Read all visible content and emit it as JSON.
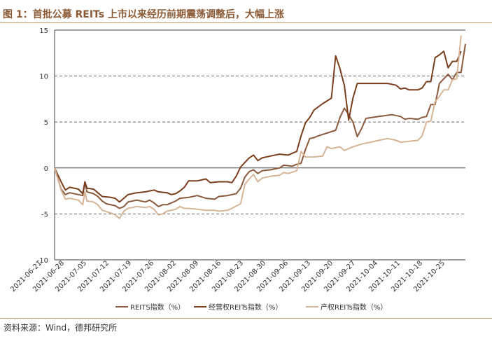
{
  "header": {
    "title": "图 1：首批公募 REITs 上市以来经历前期震荡调整后，大幅上涨"
  },
  "footer": {
    "source": "资料来源：Wind，德邦研究所"
  },
  "colors": {
    "title": "#8B5A34",
    "rule": "#C9A27A",
    "grid": "#555555"
  },
  "chart_data": {
    "type": "line",
    "ylim": [
      -10,
      15
    ],
    "yticks": [
      -10,
      -5,
      0,
      5,
      10,
      15
    ],
    "grid": "dashed horizontal at 5, 10",
    "legend_position": "bottom",
    "x_tick_labels": [
      "2021-06-21",
      "2021-06-28",
      "2021-07-05",
      "2021-07-12",
      "2021-07-19",
      "2021-07-26",
      "2021-08-02",
      "2021-08-09",
      "2021-08-16",
      "2021-08-23",
      "2021-08-30",
      "2021-09-06",
      "2021-09-13",
      "2021-09-20",
      "2021-09-27",
      "2021-10-04",
      "2021-10-11",
      "2021-10-18",
      "2021-10-25"
    ],
    "series": [
      {
        "name": "REITS指数（%）",
        "color": "#8B5A3C",
        "points": [
          [
            0,
            0
          ],
          [
            1.5,
            -2.3
          ],
          [
            2.5,
            -2.9
          ],
          [
            3.5,
            -2.7
          ],
          [
            5.5,
            -2.9
          ],
          [
            6.5,
            -3.0
          ],
          [
            7,
            -1.6
          ],
          [
            7.5,
            -2.6
          ],
          [
            9,
            -2.8
          ],
          [
            10,
            -3.1
          ],
          [
            11,
            -3.6
          ],
          [
            12,
            -3.9
          ],
          [
            14,
            -4.1
          ],
          [
            15,
            -4.4
          ],
          [
            16,
            -4.2
          ],
          [
            17,
            -3.7
          ],
          [
            18,
            -3.6
          ],
          [
            19,
            -3.5
          ],
          [
            21,
            -3.7
          ],
          [
            22,
            -3.5
          ],
          [
            23,
            -3.8
          ],
          [
            24,
            -4.2
          ],
          [
            25,
            -4.0
          ],
          [
            26,
            -4.0
          ],
          [
            28,
            -3.6
          ],
          [
            29,
            -3.3
          ],
          [
            31,
            -3.2
          ],
          [
            33,
            -3.0
          ],
          [
            35,
            -3.3
          ],
          [
            37,
            -3.4
          ],
          [
            38,
            -3.1
          ],
          [
            40,
            -3.0
          ],
          [
            42,
            -2.8
          ],
          [
            43,
            -2.2
          ],
          [
            44,
            -1.0
          ],
          [
            45,
            -0.4
          ],
          [
            46,
            -0.2
          ],
          [
            47,
            -0.6
          ],
          [
            48,
            -0.3
          ],
          [
            50,
            -0.2
          ],
          [
            52,
            0
          ],
          [
            53,
            0.3
          ],
          [
            55,
            0.2
          ],
          [
            56,
            0.4
          ],
          [
            57,
            0.5
          ],
          [
            58,
            2.0
          ],
          [
            59,
            3.2
          ],
          [
            60,
            3.3
          ],
          [
            61,
            3.5
          ],
          [
            63,
            3.8
          ],
          [
            65,
            4.1
          ],
          [
            66,
            5.5
          ],
          [
            67,
            6.5
          ],
          [
            68,
            5.8
          ],
          [
            69,
            5.0
          ],
          [
            70,
            3.4
          ],
          [
            71,
            4.3
          ],
          [
            72,
            5.4
          ],
          [
            75,
            5.6
          ],
          [
            78,
            5.8
          ],
          [
            80,
            5.6
          ],
          [
            81,
            5.3
          ],
          [
            82,
            5.4
          ],
          [
            84,
            5.3
          ],
          [
            85,
            5.5
          ],
          [
            86,
            5.6
          ],
          [
            87,
            6.9
          ],
          [
            88,
            6.9
          ],
          [
            89,
            9.2
          ],
          [
            90,
            9.7
          ],
          [
            91,
            10.2
          ],
          [
            92,
            9.6
          ],
          [
            93,
            10.4
          ],
          [
            94,
            10.4
          ],
          [
            95,
            13.5
          ]
        ]
      },
      {
        "name": "经营权REITs指数（%）",
        "color": "#7A3E1D",
        "points": [
          [
            0,
            0
          ],
          [
            1.5,
            -1.5
          ],
          [
            2.5,
            -2.4
          ],
          [
            3.5,
            -2.1
          ],
          [
            5.5,
            -2.3
          ],
          [
            6.5,
            -2.8
          ],
          [
            7,
            -1.5
          ],
          [
            7.5,
            -2.2
          ],
          [
            9,
            -2.3
          ],
          [
            10,
            -2.7
          ],
          [
            11,
            -3.1
          ],
          [
            13,
            -3.2
          ],
          [
            14,
            -3.3
          ],
          [
            15,
            -3.7
          ],
          [
            16,
            -3.3
          ],
          [
            17,
            -2.9
          ],
          [
            18,
            -2.8
          ],
          [
            19,
            -2.7
          ],
          [
            21,
            -2.6
          ],
          [
            22,
            -2.5
          ],
          [
            23,
            -2.4
          ],
          [
            24,
            -2.6
          ],
          [
            26,
            -2.7
          ],
          [
            27,
            -2.9
          ],
          [
            28,
            -2.8
          ],
          [
            29,
            -2.5
          ],
          [
            30,
            -2.1
          ],
          [
            31,
            -1.4
          ],
          [
            33,
            -1.4
          ],
          [
            34,
            -1.3
          ],
          [
            35,
            -1.2
          ],
          [
            36,
            -1.6
          ],
          [
            38,
            -1.5
          ],
          [
            40,
            -1.5
          ],
          [
            41,
            -1.6
          ],
          [
            42,
            -0.9
          ],
          [
            43,
            0.1
          ],
          [
            44,
            0.6
          ],
          [
            45,
            1.1
          ],
          [
            46,
            1.4
          ],
          [
            47,
            0.8
          ],
          [
            48,
            1.1
          ],
          [
            50,
            1.3
          ],
          [
            52,
            1.5
          ],
          [
            54,
            1.4
          ],
          [
            55,
            1.6
          ],
          [
            56,
            1.8
          ],
          [
            57,
            3.5
          ],
          [
            58,
            4.9
          ],
          [
            59,
            5.5
          ],
          [
            60,
            6.3
          ],
          [
            62,
            7.0
          ],
          [
            64,
            7.6
          ],
          [
            65,
            12.2
          ],
          [
            66,
            10.8
          ],
          [
            67,
            9.0
          ],
          [
            68,
            5.2
          ],
          [
            69,
            7.6
          ],
          [
            70,
            9.2
          ],
          [
            74,
            9.2
          ],
          [
            77,
            9.2
          ],
          [
            79,
            9.0
          ],
          [
            80,
            8.6
          ],
          [
            81,
            8.7
          ],
          [
            82,
            8.5
          ],
          [
            84,
            8.5
          ],
          [
            85,
            8.7
          ],
          [
            86,
            9.4
          ],
          [
            87,
            9.4
          ],
          [
            88,
            12.0
          ],
          [
            89,
            12.3
          ],
          [
            90,
            12.7
          ],
          [
            91,
            10.9
          ],
          [
            92,
            11.6
          ],
          [
            93,
            11.6
          ],
          [
            94,
            12.7
          ]
        ]
      },
      {
        "name": "产权REITs指数（%）",
        "color": "#D6B596",
        "points": [
          [
            0,
            0
          ],
          [
            1.5,
            -2.4
          ],
          [
            2.5,
            -3.4
          ],
          [
            3.5,
            -3.3
          ],
          [
            5.5,
            -3.5
          ],
          [
            6.5,
            -4.0
          ],
          [
            7,
            -2.6
          ],
          [
            7.5,
            -3.6
          ],
          [
            9,
            -3.7
          ],
          [
            10,
            -4.0
          ],
          [
            11,
            -4.6
          ],
          [
            13,
            -4.9
          ],
          [
            14,
            -5.1
          ],
          [
            15,
            -5.5
          ],
          [
            16,
            -4.7
          ],
          [
            17,
            -4.4
          ],
          [
            18,
            -4.3
          ],
          [
            19,
            -4.2
          ],
          [
            21,
            -4.3
          ],
          [
            22,
            -4.2
          ],
          [
            23,
            -4.5
          ],
          [
            24,
            -5.1
          ],
          [
            25,
            -5.0
          ],
          [
            26,
            -4.7
          ],
          [
            28,
            -4.5
          ],
          [
            29,
            -4.2
          ],
          [
            30,
            -4.4
          ],
          [
            31,
            -4.4
          ],
          [
            33,
            -4.5
          ],
          [
            35,
            -4.6
          ],
          [
            37,
            -4.6
          ],
          [
            38,
            -4.7
          ],
          [
            40,
            -4.6
          ],
          [
            41,
            -4.4
          ],
          [
            43,
            -3.9
          ],
          [
            44,
            -1.8
          ],
          [
            45,
            -1.2
          ],
          [
            46,
            -0.7
          ],
          [
            47,
            -1.5
          ],
          [
            48,
            -1.1
          ],
          [
            50,
            -0.9
          ],
          [
            52,
            -0.8
          ],
          [
            53,
            -0.5
          ],
          [
            54,
            -0.6
          ],
          [
            56,
            -0.3
          ],
          [
            57,
            1.8
          ],
          [
            58,
            1.2
          ],
          [
            60,
            1.2
          ],
          [
            62,
            1.3
          ],
          [
            63,
            2.3
          ],
          [
            64,
            2.1
          ],
          [
            65,
            2.2
          ],
          [
            66,
            2.3
          ],
          [
            67,
            1.9
          ],
          [
            68,
            2.1
          ],
          [
            69,
            2.3
          ],
          [
            71,
            2.6
          ],
          [
            73,
            2.8
          ],
          [
            75,
            3.0
          ],
          [
            77,
            3.2
          ],
          [
            79,
            3.0
          ],
          [
            80,
            2.8
          ],
          [
            82,
            2.9
          ],
          [
            84,
            3.0
          ],
          [
            85,
            3.5
          ],
          [
            86,
            5.0
          ],
          [
            87,
            5.1
          ],
          [
            88,
            7.2
          ],
          [
            89,
            7.8
          ],
          [
            90,
            8.5
          ],
          [
            91,
            8.5
          ],
          [
            92,
            9.6
          ],
          [
            93,
            9.7
          ],
          [
            94,
            14.4
          ]
        ]
      }
    ]
  }
}
